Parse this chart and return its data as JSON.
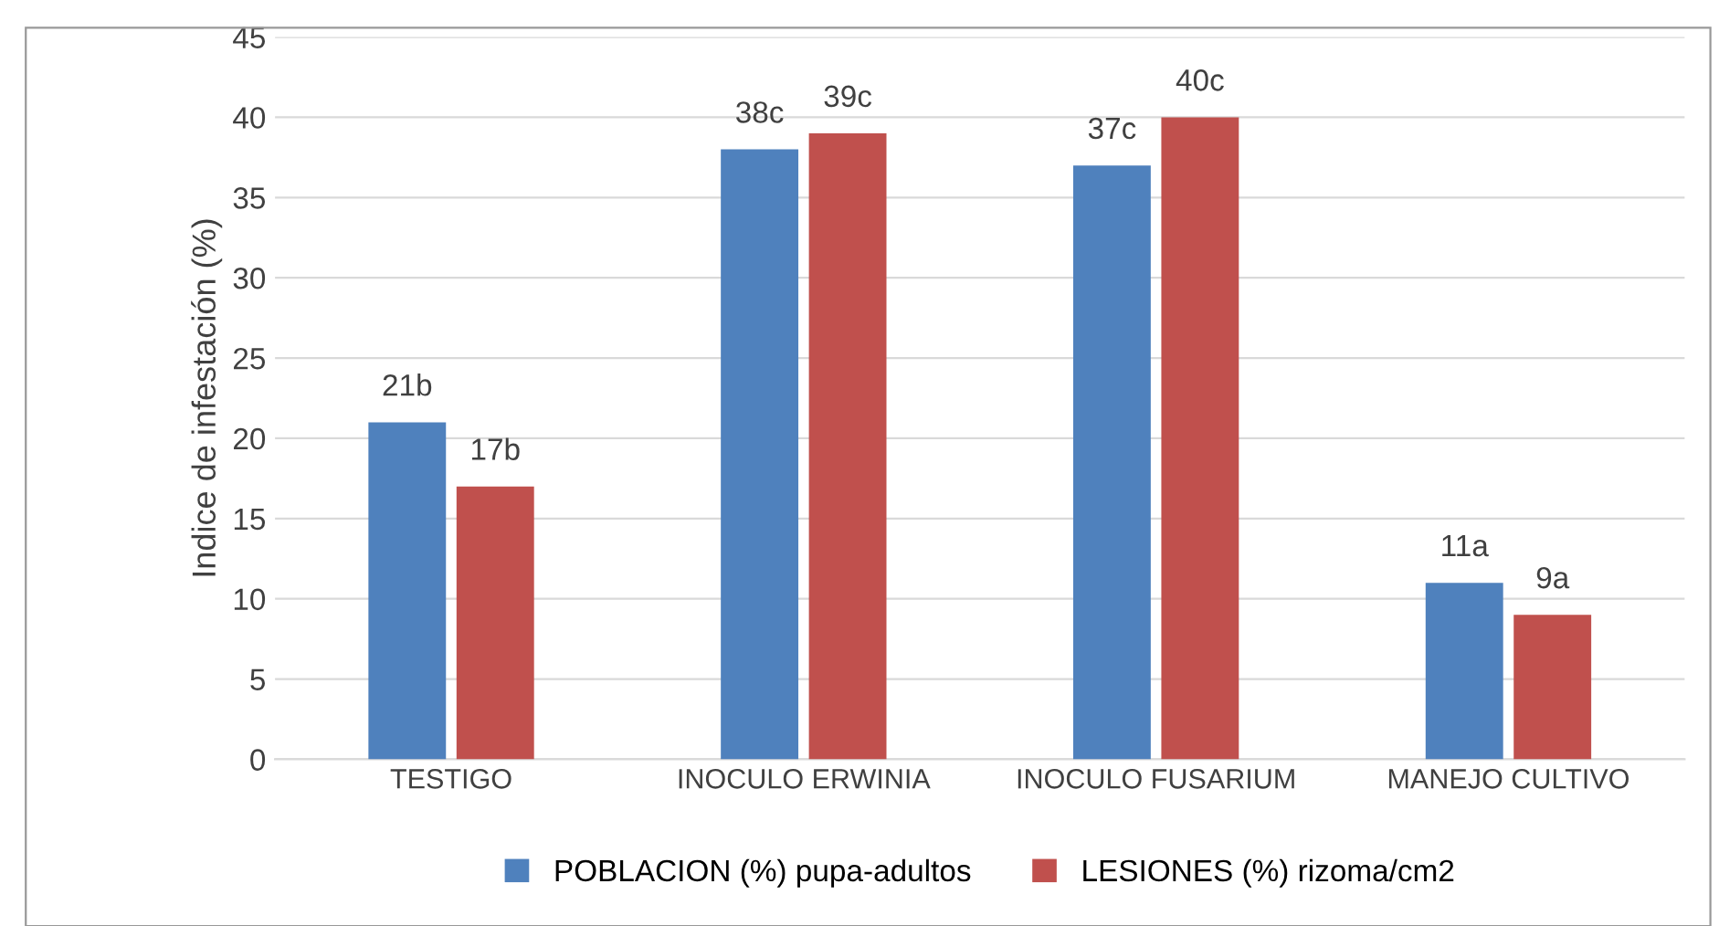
{
  "chart_data": {
    "type": "bar",
    "ylabel": "Indice de infestación (%)",
    "categories": [
      "TESTIGO",
      "INOCULO ERWINIA",
      "INOCULO FUSARIUM",
      "MANEJO CULTIVO"
    ],
    "series": [
      {
        "name": "POBLACION (%) pupa-adultos",
        "color": "#4f81bd",
        "values": [
          21,
          38,
          37,
          11
        ],
        "value_labels": [
          "21b",
          "38c",
          "37c",
          "11a"
        ]
      },
      {
        "name": "LESIONES (%) rizoma/cm2",
        "color": "#c0504d",
        "values": [
          17,
          39,
          40,
          9
        ],
        "value_labels": [
          "17b",
          "39c",
          "40c",
          "9a"
        ]
      }
    ],
    "ylim": [
      0,
      45
    ],
    "yticks": [
      0,
      5,
      10,
      15,
      20,
      25,
      30,
      35,
      40,
      45
    ],
    "grid": "y",
    "legend": "bottom"
  }
}
